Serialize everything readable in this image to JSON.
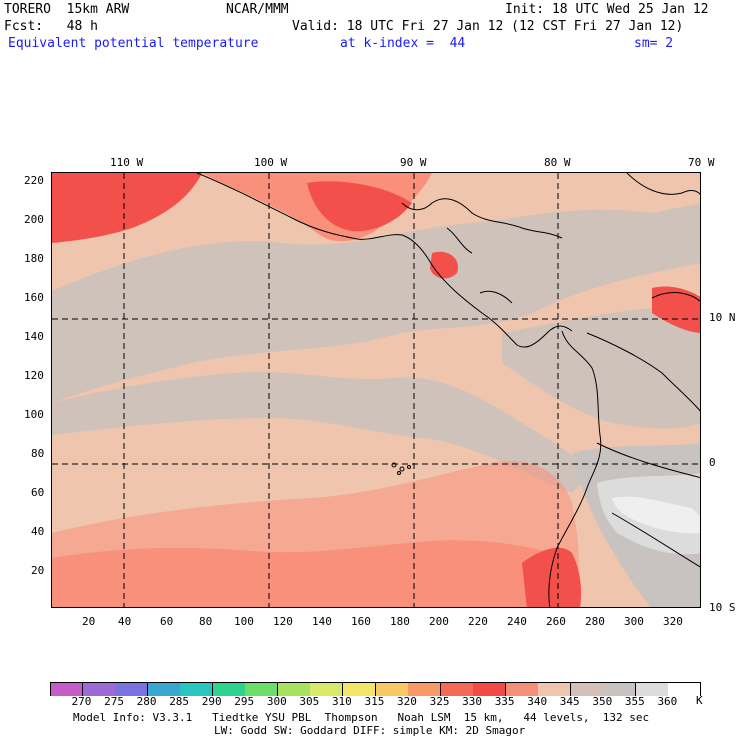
{
  "header": {
    "model": "TORERO  15km ARW",
    "source": "NCAR/MMM",
    "init": "Init: 18 UTC Wed 25 Jan 12",
    "forecast": "Fcst:   48 h",
    "valid": "Valid: 18 UTC Fri 27 Jan 12 (12 CST Fri 27 Jan 12)",
    "field": "Equivalent potential temperature",
    "level": "at k-index =  44",
    "smoothing": "sm= 2"
  },
  "map": {
    "top_longitude_labels": [
      "110 W",
      "100 W",
      "90 W",
      "80 W",
      "70 W"
    ],
    "right_latitude_labels": [
      "10 N",
      "0",
      "10 S"
    ],
    "left_axis_labels": [
      "220",
      "200",
      "180",
      "160",
      "140",
      "120",
      "100",
      "80",
      "60",
      "40",
      "20"
    ],
    "bottom_axis_labels": [
      "20",
      "40",
      "60",
      "80",
      "100",
      "120",
      "140",
      "160",
      "180",
      "200",
      "220",
      "240",
      "260",
      "280",
      "300",
      "320"
    ],
    "colors": {
      "background_field": "#efc5ad",
      "warm_field": "#f9907c",
      "hot_field": "#f4504b",
      "cool_field": "#cfc2bb",
      "cold_field": "#e8e8e8",
      "land_outline": "#000000"
    }
  },
  "colorbar": {
    "unit": "K",
    "labels": [
      "270",
      "275",
      "280",
      "285",
      "290",
      "295",
      "300",
      "305",
      "310",
      "315",
      "320",
      "325",
      "330",
      "335",
      "340",
      "345",
      "350",
      "355",
      "360"
    ],
    "colors": [
      "#c55cc8",
      "#9b6ad5",
      "#7b72e2",
      "#3aa7d2",
      "#2ac5c0",
      "#30d38e",
      "#6cdc6a",
      "#a8e060",
      "#d8e868",
      "#f3e46a",
      "#f6c866",
      "#f79a66",
      "#f46a56",
      "#f34a46",
      "#f4907a",
      "#efc5ad",
      "#d3c1b8",
      "#c8c2c0",
      "#dcdcdc",
      "#ffffff"
    ]
  },
  "footer": {
    "line1": "Model Info: V3.3.1   Tiedtke YSU PBL  Thompson   Noah LSM  15 km,   44 levels,  132 sec",
    "line2": "LW: Godd SW: Goddard DIFF: simple KM: 2D Smagor"
  }
}
